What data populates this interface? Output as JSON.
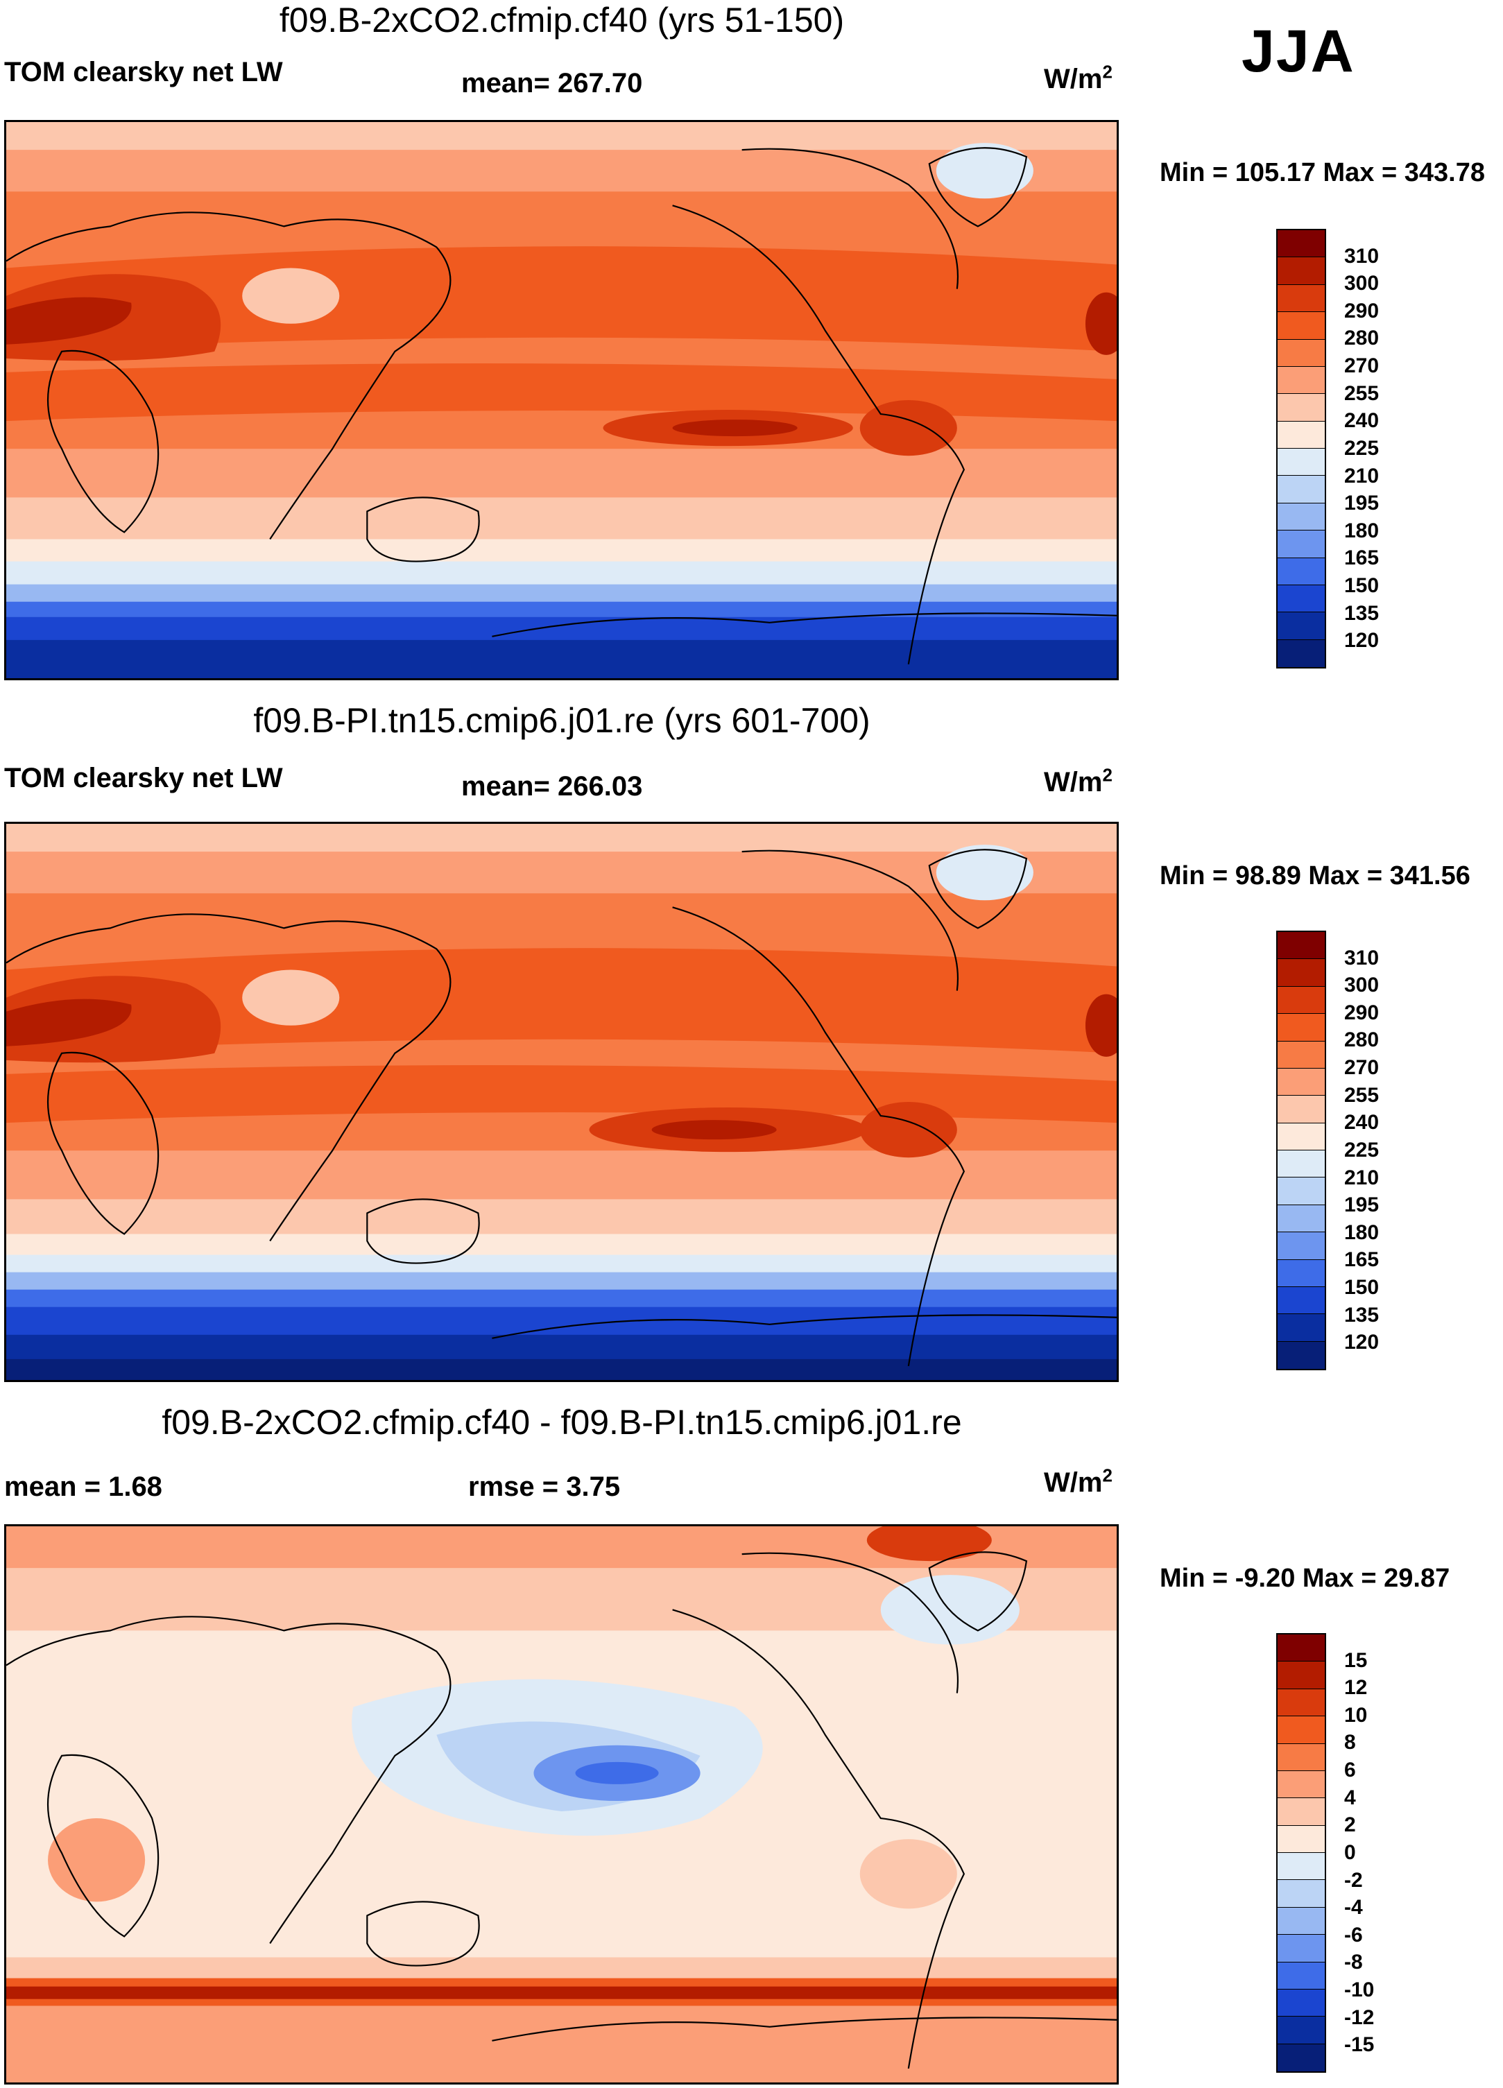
{
  "season": "JJA",
  "panels": [
    {
      "title": "f09.B-2xCO2.cfmip.cf40 (yrs 51-150)",
      "left_label": "TOM clearsky net LW",
      "mid_label": "mean= 267.70",
      "units_base": "W/m",
      "units_exp": "2",
      "minmax": "Min = 105.17 Max = 343.78",
      "colorbar": {
        "labels": [
          "310",
          "300",
          "290",
          "280",
          "270",
          "255",
          "240",
          "225",
          "210",
          "195",
          "180",
          "165",
          "150",
          "135",
          "120"
        ],
        "colors": [
          "#7f0000",
          "#b31c00",
          "#d93b0d",
          "#f05a1f",
          "#f77b45",
          "#fb9e77",
          "#fcc7ad",
          "#fde9db",
          "#deebf7",
          "#bcd4f5",
          "#98b8f2",
          "#6d95ef",
          "#3e6ce8",
          "#1b45d0",
          "#0a2ea0",
          "#071f78"
        ]
      }
    },
    {
      "title": "f09.B-PI.tn15.cmip6.j01.re (yrs 601-700)",
      "left_label": "TOM clearsky net LW",
      "mid_label": "mean= 266.03",
      "units_base": "W/m",
      "units_exp": "2",
      "minmax": "Min = 98.89 Max = 341.56",
      "colorbar": {
        "labels": [
          "310",
          "300",
          "290",
          "280",
          "270",
          "255",
          "240",
          "225",
          "210",
          "195",
          "180",
          "165",
          "150",
          "135",
          "120"
        ],
        "colors": [
          "#7f0000",
          "#b31c00",
          "#d93b0d",
          "#f05a1f",
          "#f77b45",
          "#fb9e77",
          "#fcc7ad",
          "#fde9db",
          "#deebf7",
          "#bcd4f5",
          "#98b8f2",
          "#6d95ef",
          "#3e6ce8",
          "#1b45d0",
          "#0a2ea0",
          "#071f78"
        ]
      }
    },
    {
      "title": "f09.B-2xCO2.cfmip.cf40 - f09.B-PI.tn15.cmip6.j01.re",
      "left_label": "mean =   1.68",
      "mid_label": "rmse =   3.75",
      "units_base": "W/m",
      "units_exp": "2",
      "minmax": "Min = -9.20 Max = 29.87",
      "colorbar": {
        "labels": [
          "15",
          "12",
          "10",
          "8",
          "6",
          "4",
          "2",
          "0",
          "-2",
          "-4",
          "-6",
          "-8",
          "-10",
          "-12",
          "-15"
        ],
        "colors": [
          "#7f0000",
          "#b31c00",
          "#d93b0d",
          "#f05a1f",
          "#f77b45",
          "#fb9e77",
          "#fcc7ad",
          "#fde9db",
          "#deebf7",
          "#bcd4f5",
          "#98b8f2",
          "#6d95ef",
          "#3e6ce8",
          "#1b45d0",
          "#0a2ea0",
          "#071f78"
        ]
      }
    }
  ]
}
